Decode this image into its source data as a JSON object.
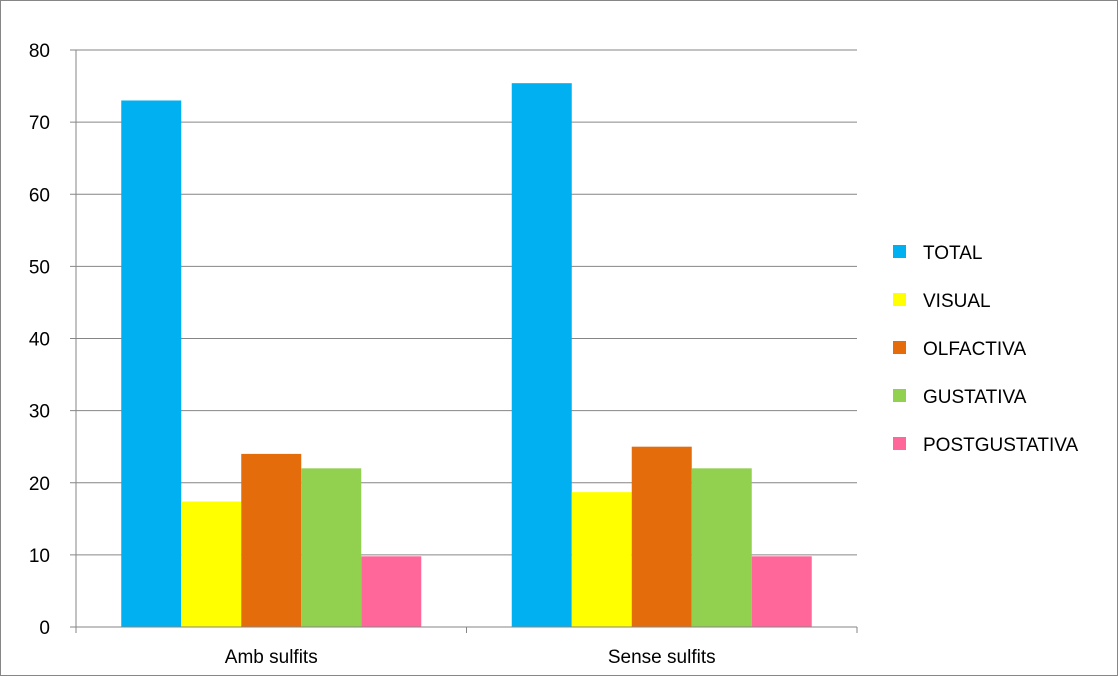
{
  "chart_data": {
    "type": "bar",
    "categories": [
      "Amb sulfits",
      "Sense sulfits"
    ],
    "series": [
      {
        "name": "TOTAL",
        "values": [
          73,
          75.4
        ]
      },
      {
        "name": "VISUAL",
        "values": [
          17.4,
          18.7
        ]
      },
      {
        "name": "OLFACTIVA",
        "values": [
          24,
          25
        ]
      },
      {
        "name": "GUSTATIVA",
        "values": [
          22,
          22
        ]
      },
      {
        "name": "POSTGUSTATIVA",
        "values": [
          9.8,
          9.8
        ]
      }
    ],
    "title": "",
    "xlabel": "",
    "ylabel": "",
    "ylim": [
      0,
      80
    ],
    "yticks": [
      "0",
      "10",
      "20",
      "30",
      "40",
      "50",
      "60",
      "70",
      "80"
    ],
    "grid": true,
    "legend_position": "right",
    "colors": [
      "#00b0f0",
      "#ffff00",
      "#e46c0a",
      "#92d050",
      "#ff6699"
    ]
  }
}
